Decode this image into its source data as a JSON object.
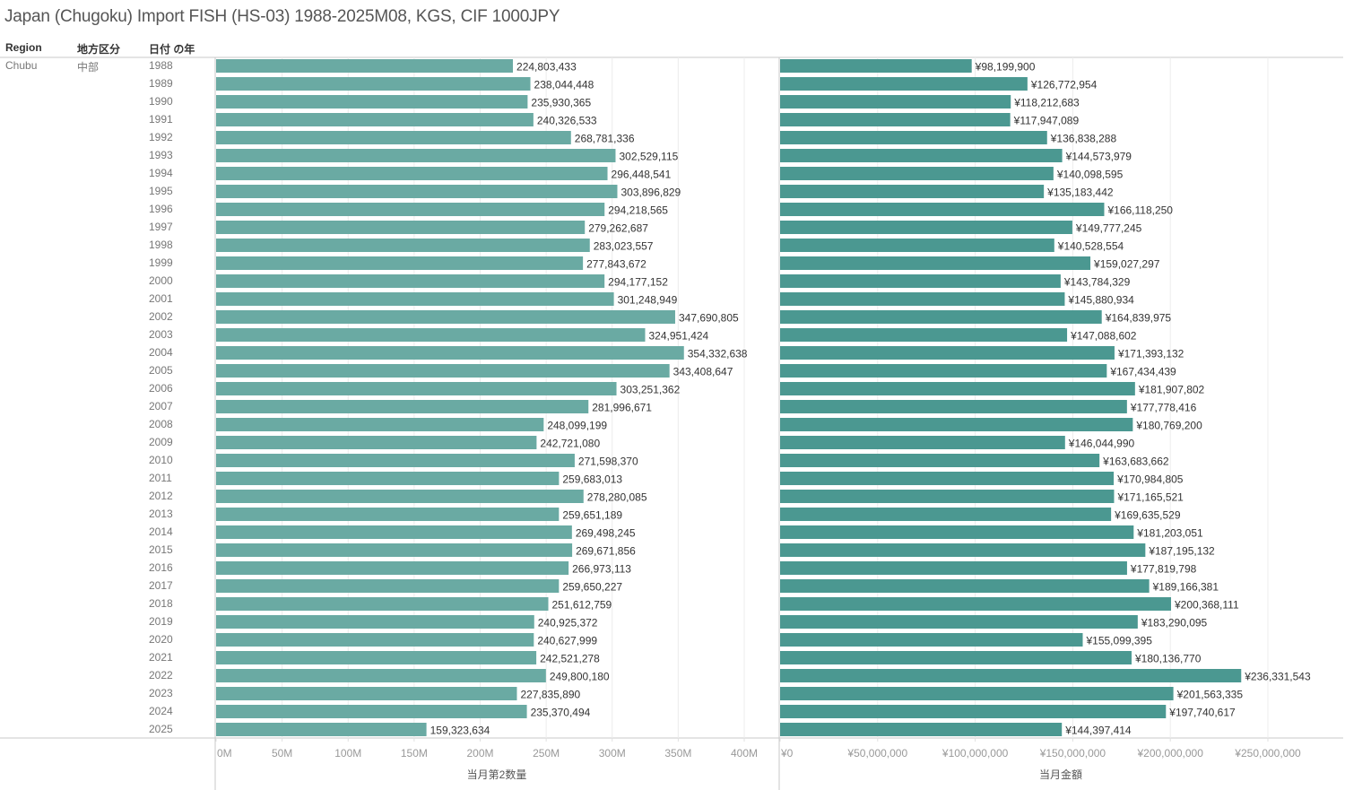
{
  "title": "Japan (Chugoku) Import FISH (HS-03) 1988-2025M08, KGS, CIF 1000JPY",
  "headers": {
    "region": "Region",
    "area": "地方区分",
    "year": "日付 の年"
  },
  "row_labels": {
    "region": "Chubu",
    "area": "中部"
  },
  "colors": {
    "left_bar": "#6aaaa3",
    "right_bar": "#4b9891",
    "gridline": "#ececec",
    "axis": "#c8c8c8"
  },
  "chart_data": [
    {
      "type": "bar",
      "orientation": "horizontal",
      "xlabel": "当月第2数量",
      "xlim": [
        0,
        400000000
      ],
      "ticks": [
        "0M",
        "50M",
        "100M",
        "150M",
        "200M",
        "250M",
        "300M",
        "350M",
        "400M"
      ],
      "tick_values": [
        0,
        50000000,
        100000000,
        150000000,
        200000000,
        250000000,
        300000000,
        350000000,
        400000000
      ],
      "categories": [
        "1988",
        "1989",
        "1990",
        "1991",
        "1992",
        "1993",
        "1994",
        "1995",
        "1996",
        "1997",
        "1998",
        "1999",
        "2000",
        "2001",
        "2002",
        "2003",
        "2004",
        "2005",
        "2006",
        "2007",
        "2008",
        "2009",
        "2010",
        "2011",
        "2012",
        "2013",
        "2014",
        "2015",
        "2016",
        "2017",
        "2018",
        "2019",
        "2020",
        "2021",
        "2022",
        "2023",
        "2024",
        "2025"
      ],
      "values": [
        224803433,
        238044448,
        235930365,
        240326533,
        268781336,
        302529115,
        296448541,
        303896829,
        294218565,
        279262687,
        283023557,
        277843672,
        294177152,
        301248949,
        347690805,
        324951424,
        354332638,
        343408647,
        303251362,
        281996671,
        248099199,
        242721080,
        271598370,
        259683013,
        278280085,
        259651189,
        269498245,
        269671856,
        266973113,
        259650227,
        251612759,
        240925372,
        240627999,
        242521278,
        249800180,
        227835890,
        235370494,
        159323634
      ],
      "labels": [
        "224,803,433",
        "238,044,448",
        "235,930,365",
        "240,326,533",
        "268,781,336",
        "302,529,115",
        "296,448,541",
        "303,896,829",
        "294,218,565",
        "279,262,687",
        "283,023,557",
        "277,843,672",
        "294,177,152",
        "301,248,949",
        "347,690,805",
        "324,951,424",
        "354,332,638",
        "343,408,647",
        "303,251,362",
        "281,996,671",
        "248,099,199",
        "242,721,080",
        "271,598,370",
        "259,683,013",
        "278,280,085",
        "259,651,189",
        "269,498,245",
        "269,671,856",
        "266,973,113",
        "259,650,227",
        "251,612,759",
        "240,925,372",
        "240,627,999",
        "242,521,278",
        "249,800,180",
        "227,835,890",
        "235,370,494",
        "159,323,634"
      ]
    },
    {
      "type": "bar",
      "orientation": "horizontal",
      "xlabel": "当月金額",
      "xlim": [
        0,
        290000000
      ],
      "ticks": [
        "¥0",
        "¥50,000,000",
        "¥100,000,000",
        "¥150,000,000",
        "¥200,000,000",
        "¥250,000,000"
      ],
      "tick_values": [
        0,
        50000000,
        100000000,
        150000000,
        200000000,
        250000000
      ],
      "categories": [
        "1988",
        "1989",
        "1990",
        "1991",
        "1992",
        "1993",
        "1994",
        "1995",
        "1996",
        "1997",
        "1998",
        "1999",
        "2000",
        "2001",
        "2002",
        "2003",
        "2004",
        "2005",
        "2006",
        "2007",
        "2008",
        "2009",
        "2010",
        "2011",
        "2012",
        "2013",
        "2014",
        "2015",
        "2016",
        "2017",
        "2018",
        "2019",
        "2020",
        "2021",
        "2022",
        "2023",
        "2024",
        "2025"
      ],
      "values": [
        98199900,
        126772954,
        118212683,
        117947089,
        136838288,
        144573979,
        140098595,
        135183442,
        166118250,
        149777245,
        140528554,
        159027297,
        143784329,
        145880934,
        164839975,
        147088602,
        171393132,
        167434439,
        181907802,
        177778416,
        180769200,
        146044990,
        163683662,
        170984805,
        171165521,
        169635529,
        181203051,
        187195132,
        177819798,
        189166381,
        200368111,
        183290095,
        155099395,
        180136770,
        236331543,
        201563335,
        197740617,
        144397414
      ],
      "labels": [
        "¥98,199,900",
        "¥126,772,954",
        "¥118,212,683",
        "¥117,947,089",
        "¥136,838,288",
        "¥144,573,979",
        "¥140,098,595",
        "¥135,183,442",
        "¥166,118,250",
        "¥149,777,245",
        "¥140,528,554",
        "¥159,027,297",
        "¥143,784,329",
        "¥145,880,934",
        "¥164,839,975",
        "¥147,088,602",
        "¥171,393,132",
        "¥167,434,439",
        "¥181,907,802",
        "¥177,778,416",
        "¥180,769,200",
        "¥146,044,990",
        "¥163,683,662",
        "¥170,984,805",
        "¥171,165,521",
        "¥169,635,529",
        "¥181,203,051",
        "¥187,195,132",
        "¥177,819,798",
        "¥189,166,381",
        "¥200,368,111",
        "¥183,290,095",
        "¥155,099,395",
        "¥180,136,770",
        "¥236,331,543",
        "¥201,563,335",
        "¥197,740,617",
        "¥144,397,414"
      ]
    }
  ]
}
